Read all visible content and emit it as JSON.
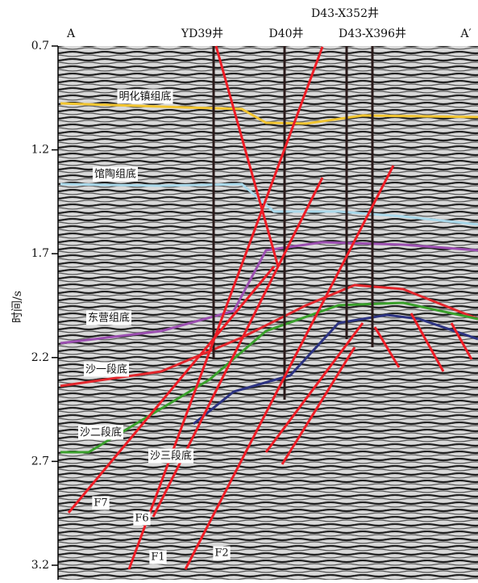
{
  "axis": {
    "label": "时间/s",
    "ylim": [
      0.7,
      3.27
    ],
    "yticks": [
      0.7,
      1.2,
      1.7,
      2.2,
      2.7,
      3.2
    ]
  },
  "section_ends": {
    "left": "A",
    "right": "A′"
  },
  "wells": [
    "YD39井",
    "D40井",
    "D43-X352井",
    "D43-X396井"
  ],
  "horizons": [
    "明化镇组底",
    "馆陶组底",
    "东营组底",
    "沙一段底",
    "沙二段底",
    "沙三段底"
  ],
  "faults": [
    "F7",
    "F6",
    "F1",
    "F2"
  ]
}
